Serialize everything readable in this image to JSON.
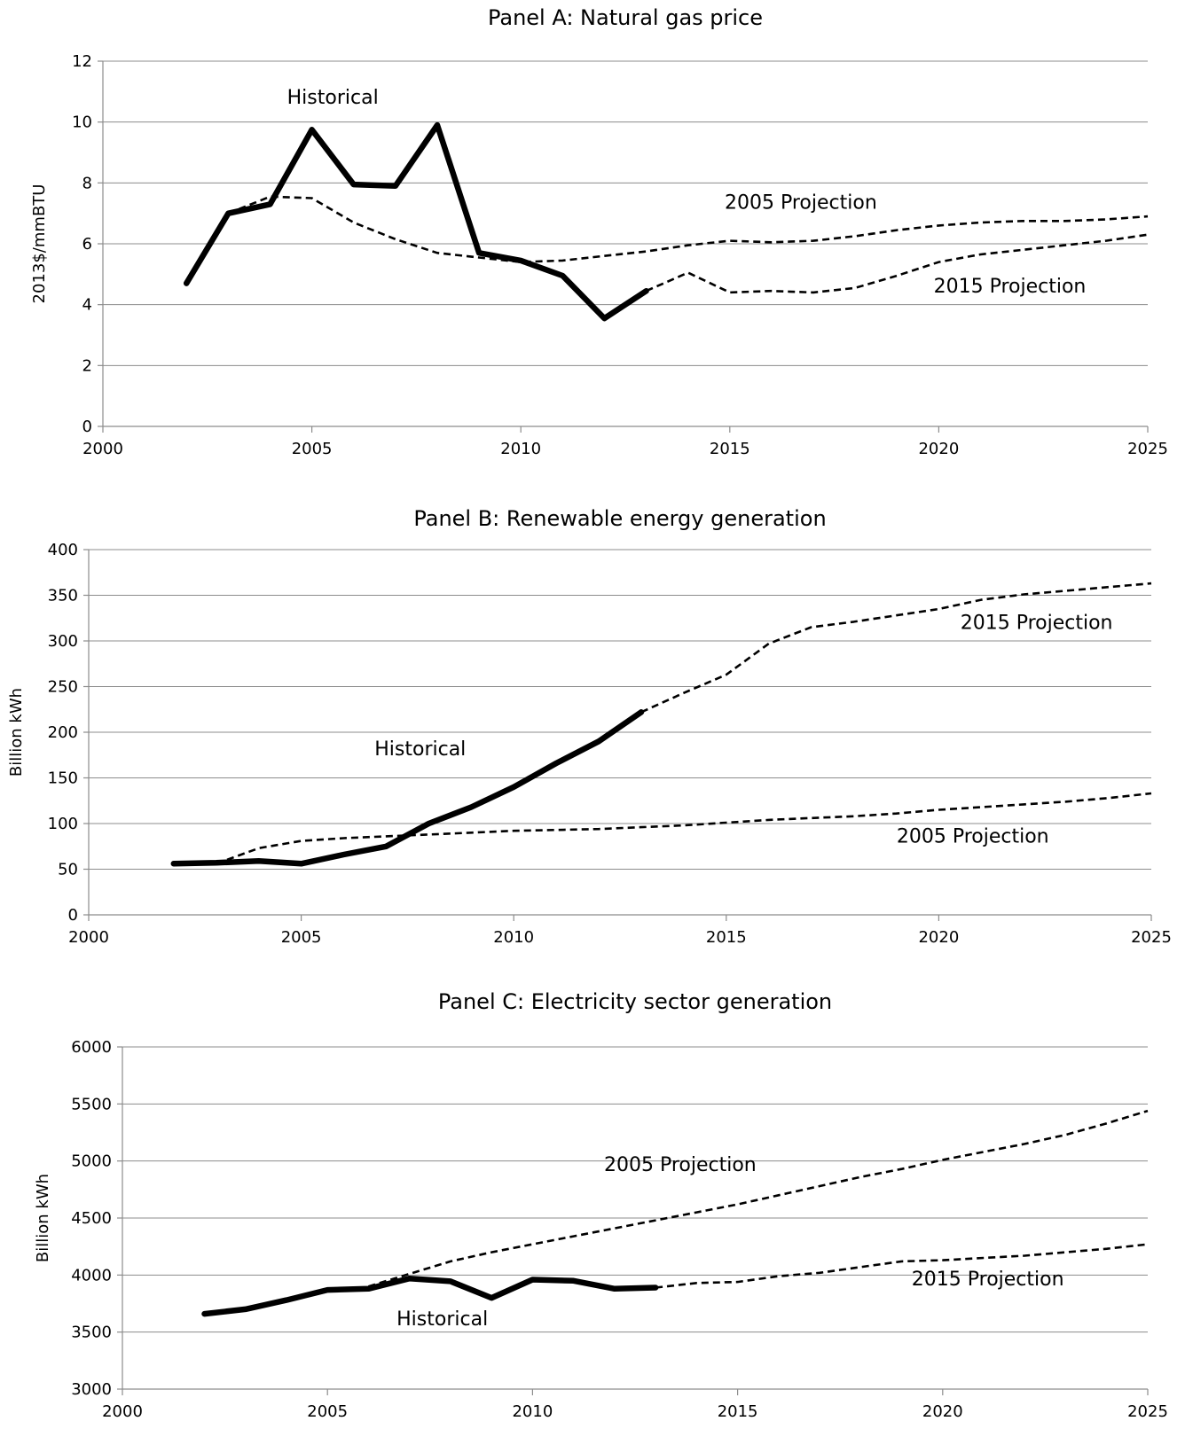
{
  "chart_data": [
    {
      "type": "line",
      "title": "Panel A: Natural gas price",
      "ylabel": "2013$/mmBTU",
      "xlabel": "",
      "xlim": [
        2000,
        2025
      ],
      "ylim": [
        0,
        12
      ],
      "x_ticks": [
        "2000",
        "2005",
        "2010",
        "2015",
        "2020",
        "2025"
      ],
      "y_ticks": [
        "0",
        "2",
        "4",
        "6",
        "8",
        "10",
        "12"
      ],
      "grid": true,
      "series": [
        {
          "id": "historical",
          "style": "solid",
          "x": [
            2002,
            2003,
            2004,
            2005,
            2006,
            2007,
            2008,
            2009,
            2010,
            2011,
            2012,
            2013
          ],
          "y": [
            4.7,
            7.0,
            7.3,
            9.75,
            7.95,
            7.9,
            9.9,
            5.7,
            5.45,
            4.95,
            3.55,
            4.45
          ]
        },
        {
          "id": "proj2005",
          "style": "dashed",
          "x": [
            2003,
            2004,
            2005,
            2006,
            2007,
            2008,
            2009,
            2010,
            2011,
            2012,
            2013,
            2014,
            2015,
            2016,
            2017,
            2018,
            2019,
            2020,
            2021,
            2022,
            2023,
            2024,
            2025
          ],
          "y": [
            7.0,
            7.55,
            7.5,
            6.7,
            6.15,
            5.7,
            5.55,
            5.4,
            5.45,
            5.6,
            5.75,
            5.95,
            6.1,
            6.05,
            6.1,
            6.25,
            6.45,
            6.6,
            6.7,
            6.75,
            6.75,
            6.8,
            6.9
          ]
        },
        {
          "id": "proj2015",
          "style": "dashed",
          "x": [
            2013,
            2014,
            2015,
            2016,
            2017,
            2018,
            2019,
            2020,
            2021,
            2022,
            2023,
            2024,
            2025
          ],
          "y": [
            4.45,
            5.05,
            4.4,
            4.45,
            4.4,
            4.55,
            4.95,
            5.4,
            5.65,
            5.8,
            5.95,
            6.1,
            6.3
          ]
        }
      ],
      "annotations": [
        {
          "text": "Historical",
          "x": 2005.5,
          "y": 10.6
        },
        {
          "text": "2005 Projection",
          "x": 2016.7,
          "y": 7.15
        },
        {
          "text": "2015 Projection",
          "x": 2021.7,
          "y": 4.4
        }
      ]
    },
    {
      "type": "line",
      "title": "Panel B: Renewable energy generation",
      "ylabel": "Billion kWh",
      "xlabel": "",
      "xlim": [
        2000,
        2025
      ],
      "ylim": [
        0,
        400
      ],
      "x_ticks": [
        "2000",
        "2005",
        "2010",
        "2015",
        "2020",
        "2025"
      ],
      "y_ticks": [
        "0",
        "50",
        "100",
        "150",
        "200",
        "250",
        "300",
        "350",
        "400"
      ],
      "grid": true,
      "series": [
        {
          "id": "historical",
          "style": "solid",
          "x": [
            2002,
            2003,
            2004,
            2005,
            2006,
            2007,
            2008,
            2009,
            2010,
            2011,
            2012,
            2013
          ],
          "y": [
            56,
            57,
            59,
            56,
            66,
            75,
            100,
            118,
            140,
            166,
            190,
            222
          ]
        },
        {
          "id": "proj2005",
          "style": "dashed",
          "x": [
            2003,
            2004,
            2005,
            2006,
            2007,
            2008,
            2009,
            2010,
            2011,
            2012,
            2013,
            2014,
            2015,
            2016,
            2017,
            2018,
            2019,
            2020,
            2021,
            2022,
            2023,
            2024,
            2025
          ],
          "y": [
            56,
            73,
            81,
            84,
            86,
            88,
            90,
            92,
            93,
            94,
            96,
            98,
            101,
            104,
            106,
            108,
            111,
            115,
            118,
            121,
            124,
            128,
            133
          ]
        },
        {
          "id": "proj2015",
          "style": "dashed",
          "x": [
            2013,
            2014,
            2015,
            2016,
            2017,
            2018,
            2019,
            2020,
            2021,
            2022,
            2023,
            2024,
            2025
          ],
          "y": [
            222,
            243,
            263,
            297,
            315,
            321,
            328,
            335,
            345,
            351,
            355,
            359,
            363
          ]
        }
      ],
      "annotations": [
        {
          "text": "Historical",
          "x": 2007.8,
          "y": 175
        },
        {
          "text": "2015 Projection",
          "x": 2022.3,
          "y": 313
        },
        {
          "text": "2005 Projection",
          "x": 2020.8,
          "y": 79
        }
      ]
    },
    {
      "type": "line",
      "title": "Panel C: Electricity sector generation",
      "ylabel": "Billion kWh",
      "xlabel": "",
      "xlim": [
        2000,
        2025
      ],
      "ylim": [
        3000,
        6000
      ],
      "x_ticks": [
        "2000",
        "2005",
        "2010",
        "2015",
        "2020",
        "2025"
      ],
      "y_ticks": [
        "3000",
        "3500",
        "4000",
        "4500",
        "5000",
        "5500",
        "6000"
      ],
      "grid": true,
      "series": [
        {
          "id": "historical",
          "style": "solid",
          "x": [
            2002,
            2003,
            2004,
            2005,
            2006,
            2007,
            2008,
            2009,
            2010,
            2011,
            2012,
            2013
          ],
          "y": [
            3660,
            3700,
            3780,
            3870,
            3880,
            3970,
            3945,
            3800,
            3960,
            3950,
            3880,
            3890
          ]
        },
        {
          "id": "proj2005",
          "style": "dashed",
          "x": [
            2006,
            2007,
            2008,
            2009,
            2010,
            2011,
            2012,
            2013,
            2014,
            2015,
            2016,
            2017,
            2018,
            2019,
            2020,
            2021,
            2022,
            2023,
            2024,
            2025
          ],
          "y": [
            3900,
            4010,
            4120,
            4200,
            4270,
            4340,
            4410,
            4480,
            4550,
            4620,
            4700,
            4780,
            4860,
            4930,
            5010,
            5080,
            5150,
            5230,
            5330,
            5440
          ]
        },
        {
          "id": "proj2015",
          "style": "dashed",
          "x": [
            2013,
            2014,
            2015,
            2016,
            2017,
            2018,
            2019,
            2020,
            2021,
            2022,
            2023,
            2024,
            2025
          ],
          "y": [
            3890,
            3930,
            3940,
            3990,
            4020,
            4070,
            4120,
            4130,
            4150,
            4170,
            4200,
            4230,
            4270
          ]
        }
      ],
      "annotations": [
        {
          "text": "2005 Projection",
          "x": 2013.6,
          "y": 4910
        },
        {
          "text": "2015 Projection",
          "x": 2021.1,
          "y": 3910
        },
        {
          "text": "Historical",
          "x": 2007.8,
          "y": 3560
        }
      ]
    }
  ]
}
